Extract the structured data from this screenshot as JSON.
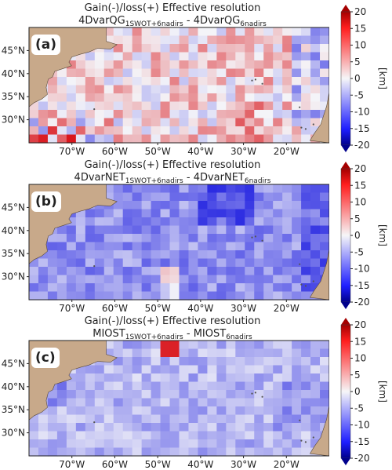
{
  "chart_data": [
    {
      "type": "heatmap",
      "panel_label": "(a)",
      "title": "Gain(-)/loss(+) Effective resolution",
      "subtitle_left_base": "4DvarQG",
      "subtitle_left_sub": "1SWOT+6nadirs",
      "subtitle_sep": " - ",
      "subtitle_right_base": "4DvarQG",
      "subtitle_right_sub": "6nadirs",
      "bias": 0.15,
      "noise": 0.38
    },
    {
      "type": "heatmap",
      "panel_label": "(b)",
      "title": "Gain(-)/loss(+) Effective resolution",
      "subtitle_left_base": "4DvarNET",
      "subtitle_left_sub": "1SWOT+6nadirs",
      "subtitle_sep": " - ",
      "subtitle_right_base": "4DvarNET",
      "subtitle_right_sub": "6nadirs",
      "bias": -0.45,
      "noise": 0.22
    },
    {
      "type": "heatmap",
      "panel_label": "(c)",
      "title": "Gain(-)/loss(+) Effective resolution",
      "subtitle_left_base": "MIOST",
      "subtitle_left_sub": "1SWOT+6nadirs",
      "subtitle_sep": " - ",
      "subtitle_right_base": "MIOST",
      "subtitle_right_sub": "6nadirs",
      "bias": -0.28,
      "noise": 0.2
    }
  ],
  "shared": {
    "xticks": [
      "70°W",
      "60°W",
      "50°W",
      "40°W",
      "30°W",
      "20°W"
    ],
    "yticks": [
      "45°N",
      "40°N",
      "35°N",
      "30°N"
    ],
    "xlim": [
      -80,
      -10
    ],
    "ylim": [
      25,
      50
    ],
    "colorbar": {
      "ticks": [
        20,
        15,
        10,
        5,
        0,
        -5,
        -10,
        -15,
        -20
      ],
      "label": "[km]",
      "vmin": -20,
      "vmax": 20
    },
    "colors": {
      "land": "#c8a98a",
      "positive": "#d9161c",
      "negative": "#1a1ae0",
      "neutral": "#f4f4f8"
    }
  }
}
